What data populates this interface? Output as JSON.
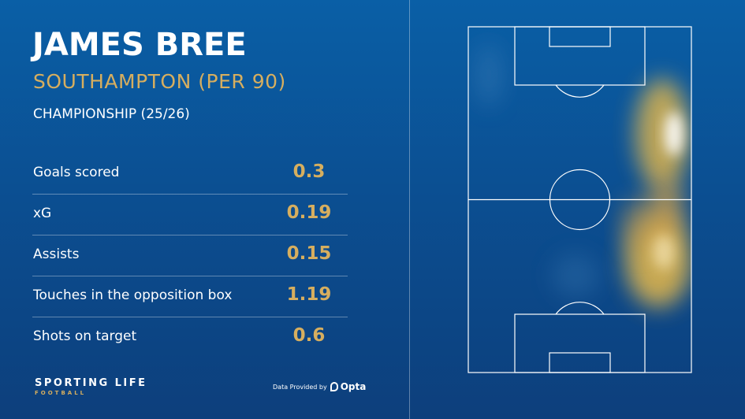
{
  "player": {
    "name": "JAMES BREE",
    "team_line": "SOUTHAMPTON (PER 90)",
    "competition": "CHAMPIONSHIP (25/26)"
  },
  "stats": [
    {
      "label": "Goals scored",
      "value": "0.3"
    },
    {
      "label": "xG",
      "value": "0.19"
    },
    {
      "label": "Assists",
      "value": "0.15"
    },
    {
      "label": "Touches in the opposition box",
      "value": "1.19"
    },
    {
      "label": "Shots on target",
      "value": "0.6"
    }
  ],
  "branding": {
    "main": "SPORTING LIFE",
    "sub": "FOOTBALL",
    "provider_text": "Data Provided by",
    "provider_name": "Opta"
  },
  "colors": {
    "background": "#0b4f92",
    "accent_gold": "#d6ae5f",
    "heat_core": "#ffffff",
    "heat_mid": "#e8b94a"
  },
  "heatmap": {
    "note_side": "right flank"
  }
}
